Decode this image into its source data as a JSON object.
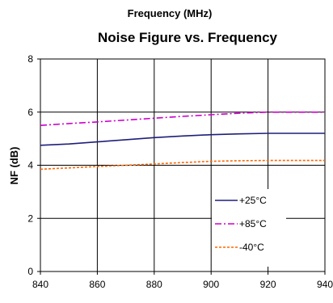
{
  "chart_data": {
    "type": "line",
    "title_top": "Frequency (MHz)",
    "title": "Noise Figure vs. Frequency",
    "xlabel": "",
    "ylabel": "NF (dB)",
    "x": [
      840,
      850,
      860,
      870,
      880,
      890,
      900,
      910,
      920,
      930,
      940
    ],
    "xlim": [
      840,
      940
    ],
    "ylim": [
      0,
      8
    ],
    "xticks": [
      840,
      860,
      880,
      900,
      920,
      940
    ],
    "yticks": [
      0,
      2,
      4,
      6,
      8
    ],
    "grid": true,
    "legend_position": "bottom-right",
    "series": [
      {
        "name": "+25°C",
        "color": "#1f1f7a",
        "dash": "solid",
        "values": [
          4.75,
          4.8,
          4.88,
          4.96,
          5.04,
          5.1,
          5.15,
          5.18,
          5.2,
          5.2,
          5.2
        ]
      },
      {
        "name": "+85°C",
        "color": "#cc00cc",
        "dash": "dashdot",
        "values": [
          5.5,
          5.57,
          5.63,
          5.7,
          5.77,
          5.84,
          5.9,
          5.96,
          6.0,
          6.0,
          6.0
        ]
      },
      {
        "name": "-40°C",
        "color": "#ff6600",
        "dash": "dotted",
        "values": [
          3.85,
          3.9,
          3.95,
          4.0,
          4.05,
          4.1,
          4.15,
          4.17,
          4.18,
          4.18,
          4.18
        ]
      }
    ]
  }
}
